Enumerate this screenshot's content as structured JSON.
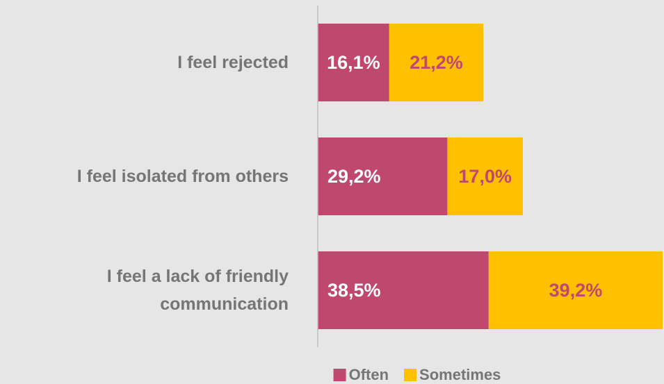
{
  "chart_data": {
    "type": "stacked_barh",
    "categories": [
      "I feel rejected",
      "I feel isolated from others",
      "I feel a lack of friendly communication"
    ],
    "series": [
      {
        "name": "Often",
        "color": "#c0476d",
        "label_color": "#ffffff",
        "values": [
          16.1,
          29.2,
          38.5
        ],
        "value_labels": [
          "16,1%",
          "29,2%",
          "38,5%"
        ]
      },
      {
        "name": "Sometimes",
        "color": "#ffc000",
        "label_color": "#c0476d",
        "values": [
          21.2,
          17.0,
          39.2
        ],
        "value_labels": [
          "21,2%",
          "17,0%",
          "39,2%"
        ]
      }
    ],
    "xlim": [
      0,
      78
    ]
  }
}
